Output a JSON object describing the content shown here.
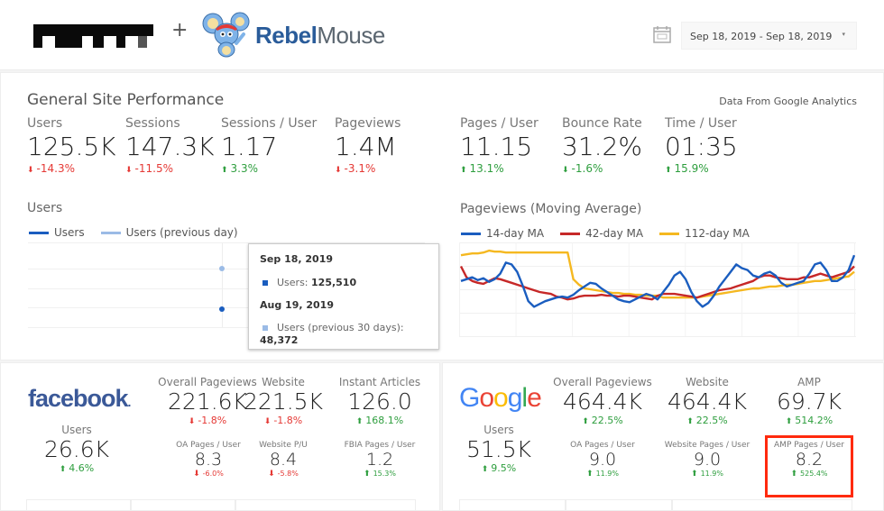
{
  "header": {
    "partner_logo": "pixelated-partner-logo",
    "plus": "+",
    "brand": {
      "part1": "Rebel",
      "part2": "Mouse"
    },
    "date_range": "Sep 18, 2019 - Sep 18, 2019",
    "caret": "▾"
  },
  "general": {
    "title": "General Site Performance",
    "source_note": "Data From Google Analytics",
    "metrics": [
      {
        "label": "Users",
        "value": "125.5K",
        "change": "-14.3%",
        "dir": "down"
      },
      {
        "label": "Sessions",
        "value": "147.3K",
        "change": "-11.5%",
        "dir": "down"
      },
      {
        "label": "Sessions / User",
        "value": "1.17",
        "change": "3.3%",
        "dir": "up"
      },
      {
        "label": "Pageviews",
        "value": "1.4M",
        "change": "-3.1%",
        "dir": "down"
      },
      {
        "label": "Pages / User",
        "value": "11.15",
        "change": "13.1%",
        "dir": "up"
      },
      {
        "label": "Bounce Rate",
        "value": "31.2%",
        "change": "-1.6%",
        "dir": "down-green"
      },
      {
        "label": "Time / User",
        "value": "01:35",
        "change": "15.9%",
        "dir": "up"
      }
    ]
  },
  "users_chart": {
    "title": "Users",
    "legend": [
      {
        "label": "Users",
        "color": "#1a5dbf"
      },
      {
        "label": "Users (previous day)",
        "color": "#9bbbe6"
      }
    ],
    "tooltip": {
      "date1": "Sep 18, 2019",
      "row1_label": "Users: ",
      "row1_value": "125,510",
      "date2": "Aug 19, 2019",
      "row2_label": "Users (previous 30 days):",
      "row2_value": "48,372"
    }
  },
  "chart_data": {
    "type": "line",
    "title": "Pageviews (Moving Average)",
    "xlabel": "",
    "ylabel": "",
    "grid": true,
    "legend_position": "top-left",
    "x": [
      0,
      1,
      2,
      3,
      4,
      5,
      6,
      7,
      8,
      9,
      10,
      11,
      12,
      13,
      14,
      15,
      16,
      17,
      18,
      19,
      20,
      21,
      22,
      23,
      24,
      25,
      26,
      27,
      28,
      29,
      30,
      31,
      32,
      33,
      34,
      35,
      36,
      37,
      38,
      39,
      40,
      41,
      42,
      43,
      44,
      45,
      46,
      47,
      48,
      49,
      50,
      51,
      52,
      53,
      54,
      55,
      56,
      57,
      58,
      59,
      60,
      61,
      62,
      63,
      64,
      65,
      66,
      67,
      68,
      69,
      70
    ],
    "ylim": [
      0,
      100
    ],
    "series": [
      {
        "name": "14-day MA",
        "color": "#1a5dbf",
        "values": [
          60,
          62,
          64,
          61,
          63,
          59,
          62,
          68,
          80,
          78,
          70,
          55,
          38,
          32,
          35,
          38,
          40,
          42,
          43,
          42,
          45,
          50,
          54,
          58,
          57,
          52,
          48,
          44,
          40,
          38,
          37,
          40,
          43,
          46,
          44,
          40,
          48,
          56,
          66,
          70,
          62,
          48,
          38,
          32,
          36,
          44,
          54,
          62,
          70,
          78,
          74,
          72,
          66,
          64,
          68,
          70,
          66,
          58,
          54,
          56,
          58,
          60,
          68,
          78,
          80,
          72,
          60,
          60,
          64,
          72,
          88
        ]
      },
      {
        "name": "42-day MA",
        "color": "#c62828",
        "values": [
          76,
          64,
          60,
          58,
          57,
          60,
          63,
          62,
          60,
          58,
          56,
          54,
          52,
          50,
          48,
          47,
          46,
          43,
          42,
          40,
          41,
          43,
          44,
          44,
          44,
          45,
          44,
          44,
          43,
          44,
          44,
          43,
          42,
          41,
          40,
          44,
          46,
          46,
          46,
          45,
          44,
          43,
          42,
          44,
          46,
          48,
          50,
          51,
          52,
          54,
          56,
          58,
          60,
          64,
          66,
          66,
          64,
          63,
          62,
          62,
          62,
          64,
          64,
          66,
          68,
          66,
          64,
          66,
          68,
          70,
          76
        ]
      },
      {
        "name": "112-day MA",
        "color": "#f5b820",
        "values": [
          88,
          89,
          90,
          90,
          91,
          93,
          92,
          92,
          91,
          91,
          91,
          91,
          91,
          91,
          91,
          91,
          91,
          91,
          91,
          91,
          62,
          56,
          52,
          51,
          50,
          49,
          48,
          47,
          47,
          46,
          46,
          45,
          45,
          44,
          44,
          44,
          42,
          42,
          42,
          42,
          42,
          42,
          42,
          43,
          44,
          45,
          46,
          47,
          48,
          49,
          50,
          51,
          52,
          52,
          53,
          54,
          54,
          55,
          56,
          56,
          57,
          58,
          59,
          60,
          60,
          61,
          62,
          63,
          64,
          65,
          70
        ]
      }
    ]
  },
  "facebook": {
    "brand": "facebook",
    "users": {
      "label": "Users",
      "value": "26.6K",
      "change": "4.6%",
      "dir": "up"
    },
    "top": [
      {
        "label": "Overall Pageviews",
        "value": "221.6K",
        "change": "-1.8%",
        "dir": "down"
      },
      {
        "label": "Website",
        "value": "221.5K",
        "change": "-1.8%",
        "dir": "down"
      },
      {
        "label": "Instant Articles",
        "value": "126.0",
        "change": "168.1%",
        "dir": "up"
      }
    ],
    "bottom": [
      {
        "label": "OA Pages / User",
        "value": "8.3",
        "change": "-6.0%",
        "dir": "down"
      },
      {
        "label": "Website P/U",
        "value": "8.4",
        "change": "-5.8%",
        "dir": "down"
      },
      {
        "label": "FBIA Pages / User",
        "value": "1.2",
        "change": "15.3%",
        "dir": "up"
      }
    ]
  },
  "google": {
    "brand": [
      "G",
      "o",
      "o",
      "g",
      "l",
      "e"
    ],
    "brand_colors": [
      "#4285f4",
      "#ea4335",
      "#fbbc05",
      "#4285f4",
      "#34a853",
      "#ea4335"
    ],
    "users": {
      "label": "Users",
      "value": "51.5K",
      "change": "9.5%",
      "dir": "up"
    },
    "top": [
      {
        "label": "Overall Pageviews",
        "value": "464.4K",
        "change": "22.5%",
        "dir": "up"
      },
      {
        "label": "Website",
        "value": "464.4K",
        "change": "22.5%",
        "dir": "up"
      },
      {
        "label": "AMP",
        "value": "69.7K",
        "change": "514.2%",
        "dir": "up"
      }
    ],
    "bottom": [
      {
        "label": "OA Pages / User",
        "value": "9.0",
        "change": "11.9%",
        "dir": "up"
      },
      {
        "label": "Website Pages / User",
        "value": "9.0",
        "change": "11.9%",
        "dir": "up"
      },
      {
        "label": "AMP Pages / User",
        "value": "8.2",
        "change": "525.4%",
        "dir": "up"
      }
    ]
  },
  "icons": {
    "up": "⬆",
    "down": "⬇"
  }
}
